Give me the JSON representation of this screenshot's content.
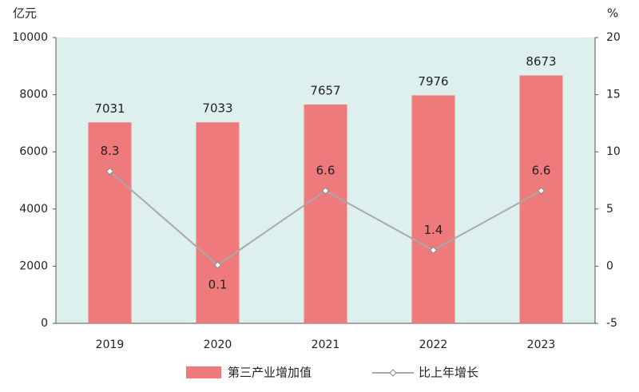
{
  "chart_data": {
    "type": "bar",
    "y_unit": "亿元",
    "y2_unit": "%",
    "categories": [
      "2019",
      "2020",
      "2021",
      "2022",
      "2023"
    ],
    "series": [
      {
        "name": "第三产业增加值",
        "type": "bar",
        "color": "#ef7a7c",
        "values": [
          7031,
          7033,
          7657,
          7976,
          8673
        ]
      },
      {
        "name": "比上年增长",
        "type": "line",
        "axis": "y2",
        "color": "#a9a9a9",
        "values": [
          8.3,
          0.1,
          6.6,
          1.4,
          6.6
        ]
      }
    ],
    "ylim": [
      0,
      10000
    ],
    "yticks": [
      0,
      2000,
      4000,
      6000,
      8000,
      10000
    ],
    "y2lim": [
      -5,
      20
    ],
    "y2ticks": [
      -5,
      0,
      5,
      10,
      15,
      20
    ],
    "grid": false
  }
}
